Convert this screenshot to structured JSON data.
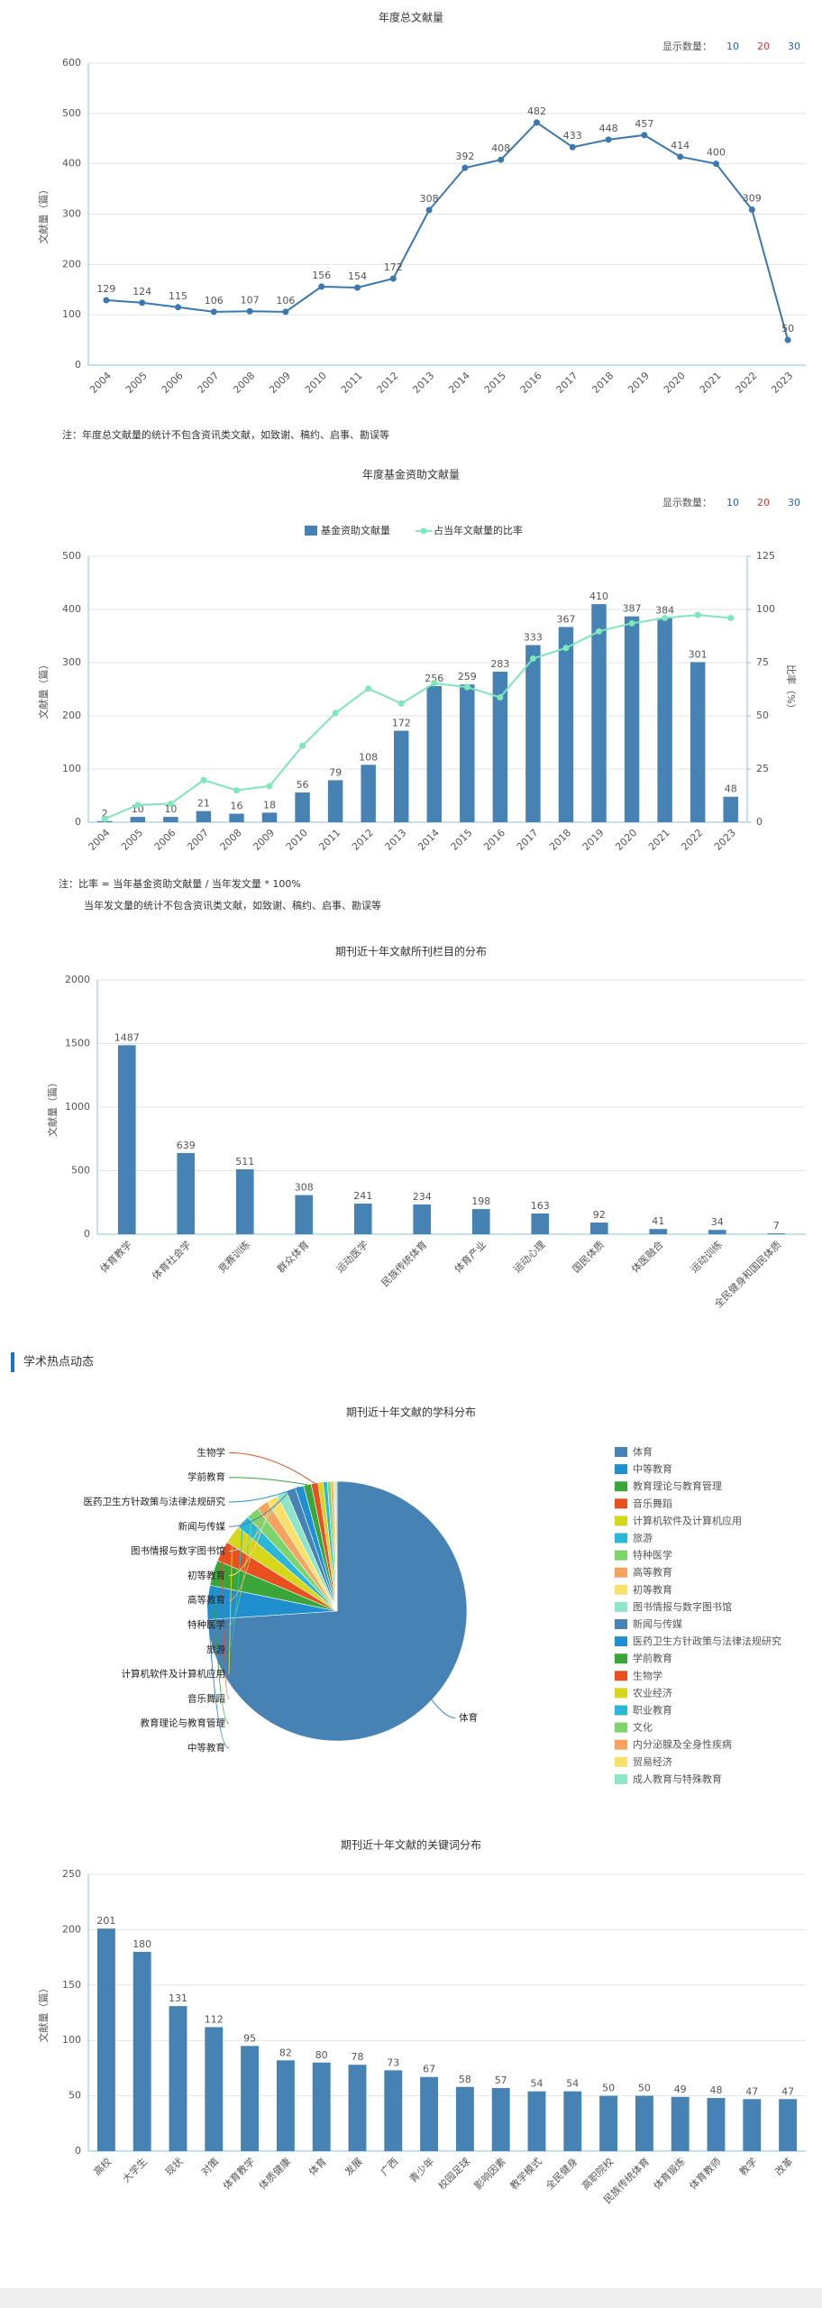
{
  "section_title": "学术热点动态",
  "chart_data": [
    {
      "type": "line",
      "title": "年度总文献量",
      "ylabel": "文献量（篇）",
      "display_count_label": "显示数量：",
      "display_count_options": [
        10,
        20,
        30
      ],
      "display_count_colors": [
        "#1f5fd0",
        "#e03030",
        "#1f5fd0"
      ],
      "categories": [
        "2004",
        "2005",
        "2006",
        "2007",
        "2008",
        "2009",
        "2010",
        "2011",
        "2012",
        "2013",
        "2014",
        "2015",
        "2016",
        "2017",
        "2018",
        "2019",
        "2020",
        "2021",
        "2022",
        "2023"
      ],
      "values": [
        129,
        124,
        115,
        106,
        107,
        106,
        156,
        154,
        172,
        308,
        392,
        408,
        482,
        433,
        448,
        457,
        414,
        400,
        309,
        50
      ],
      "color": "#3a78b0",
      "ylim": [
        0,
        600
      ],
      "yticks": [
        0,
        100,
        200,
        300,
        400,
        500,
        600
      ],
      "grid": true,
      "notes": [
        "注：年度总文献量的统计不包含资讯类文献，如致谢、稿约、启事、勘误等"
      ]
    },
    {
      "type": "bar",
      "title": "年度基金资助文献量",
      "ylabel": "文献量（篇）",
      "y2label": "比率（%）",
      "display_count_label": "显示数量：",
      "display_count_options": [
        10,
        20,
        30
      ],
      "display_count_colors": [
        "#1f5fd0",
        "#e03030",
        "#1f5fd0"
      ],
      "categories": [
        "2004",
        "2005",
        "2006",
        "2007",
        "2008",
        "2009",
        "2010",
        "2011",
        "2012",
        "2013",
        "2014",
        "2015",
        "2016",
        "2017",
        "2018",
        "2019",
        "2020",
        "2021",
        "2022",
        "2023"
      ],
      "series": [
        {
          "name": "基金资助文献量",
          "color": "#4682b4",
          "values": [
            2,
            10,
            10,
            21,
            16,
            18,
            56,
            79,
            108,
            172,
            256,
            259,
            283,
            333,
            367,
            410,
            387,
            384,
            301,
            48
          ]
        },
        {
          "name": "占当年文献量的比率",
          "type": "line",
          "axis": "y2",
          "color": "#7de8b8",
          "values": [
            1.6,
            8.1,
            8.7,
            19.8,
            15,
            17,
            35.9,
            51.3,
            62.8,
            55.8,
            65.3,
            63.5,
            58.7,
            76.9,
            81.9,
            89.7,
            93.5,
            96,
            97.4,
            96
          ]
        }
      ],
      "ylim": [
        0,
        500
      ],
      "yticks": [
        0,
        100,
        200,
        300,
        400,
        500
      ],
      "y2lim": [
        0,
        125
      ],
      "y2ticks": [
        0,
        25,
        50,
        75,
        100,
        125
      ],
      "grid": true,
      "notes": [
        "注：比率 = 当年基金资助文献量 / 当年发文量 * 100%",
        "当年发文量的统计不包含资讯类文献，如致谢、稿约、启事、勘误等"
      ]
    },
    {
      "type": "bar",
      "title": "期刊近十年文献所刊栏目的分布",
      "ylabel": "文献量（篇）",
      "categories": [
        "体育教学",
        "体育社会学",
        "竞赛训练",
        "群众体育",
        "运动医学",
        "民族传统体育",
        "体育产业",
        "运动心理",
        "国民体质",
        "体医融合",
        "运动训练",
        "全民健身和国民体质"
      ],
      "values": [
        1487,
        639,
        511,
        308,
        241,
        234,
        198,
        163,
        92,
        41,
        34,
        7
      ],
      "color": "#4682b4",
      "ylim": [
        0,
        2000
      ],
      "yticks": [
        0,
        500,
        1000,
        1500,
        2000
      ],
      "grid": true
    },
    {
      "type": "pie",
      "title": "期刊近十年文献的学科分布",
      "categories": [
        "体育",
        "中等教育",
        "教育理论与教育管理",
        "音乐舞蹈",
        "计算机软件及计算机应用",
        "旅游",
        "特种医学",
        "高等教育",
        "初等教育",
        "图书情报与数字图书馆",
        "新闻与传媒",
        "医药卫生方针政策与法律法规研究",
        "学前教育",
        "生物学",
        "农业经济",
        "职业教育",
        "文化",
        "内分泌腺及全身性疾病",
        "贸易经济",
        "成人教育与特殊教育"
      ],
      "values": [
        3500,
        200,
        150,
        120,
        110,
        80,
        75,
        70,
        65,
        60,
        55,
        50,
        45,
        40,
        30,
        25,
        20,
        15,
        12,
        10
      ],
      "colors": [
        "#4682b4",
        "#1f8fd0",
        "#3aa63a",
        "#e8501f",
        "#d6d61a",
        "#2bb8d8",
        "#7fd36b",
        "#f4a460",
        "#f7e16b",
        "#8ee6c8",
        "#4682b4",
        "#1f8fd0",
        "#3aa63a",
        "#e8501f",
        "#d6d61a",
        "#2bb8d8",
        "#7fd36b",
        "#f4a460",
        "#f7e16b",
        "#8ee6c8"
      ]
    },
    {
      "type": "bar",
      "title": "期刊近十年文献的关键词分布",
      "ylabel": "文献量（篇）",
      "categories": [
        "高校",
        "大学生",
        "现状",
        "对策",
        "体育教学",
        "体质健康",
        "体育",
        "发展",
        "广西",
        "青少年",
        "校园足球",
        "影响因素",
        "教学模式",
        "全民健身",
        "高职院校",
        "民族传统体育",
        "体育锻炼",
        "体育教师",
        "教学",
        "改革"
      ],
      "values": [
        201,
        180,
        131,
        112,
        95,
        82,
        80,
        78,
        73,
        67,
        58,
        57,
        54,
        54,
        50,
        50,
        49,
        48,
        47,
        47
      ],
      "color": "#4682b4",
      "ylim": [
        0,
        250
      ],
      "yticks": [
        0,
        50,
        100,
        150,
        200,
        250
      ],
      "grid": true
    }
  ]
}
